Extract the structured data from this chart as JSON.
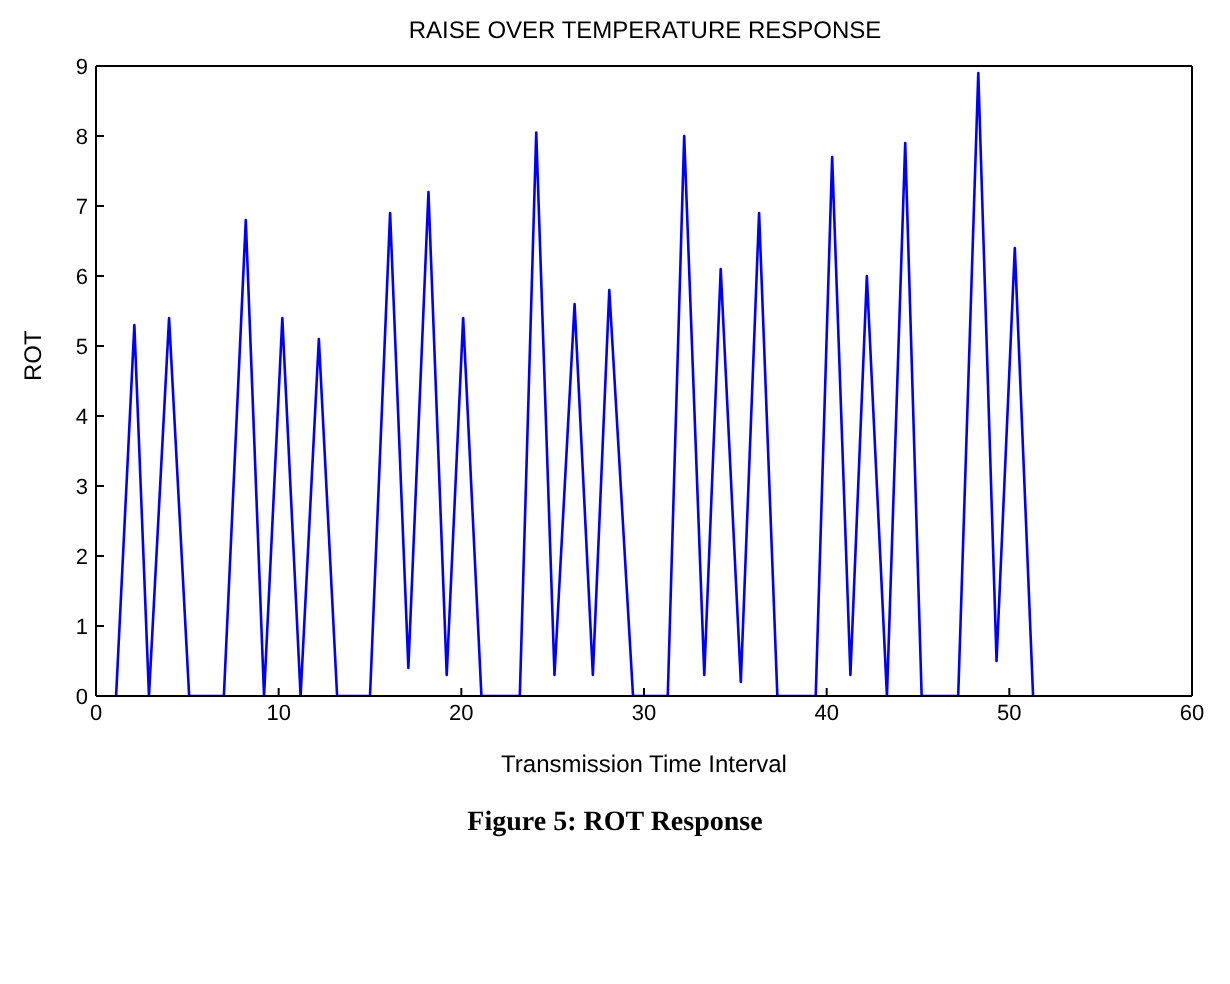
{
  "chart_data": {
    "type": "line",
    "title": "RAISE OVER TEMPERATURE RESPONSE",
    "xlabel": "Transmission Time Interval",
    "ylabel": "ROT",
    "series": [
      {
        "color": "#0000ff",
        "x": [
          1.1,
          2.1,
          2.9,
          4.0,
          5.1,
          7.0,
          8.2,
          9.2,
          10.2,
          11.2,
          12.2,
          13.2,
          15.0,
          16.1,
          17.1,
          18.2,
          19.2,
          20.1,
          21.1,
          23.2,
          24.1,
          25.1,
          26.2,
          27.2,
          28.1,
          29.4,
          31.3,
          32.2,
          33.3,
          34.2,
          35.3,
          36.3,
          37.3,
          39.4,
          40.3,
          41.3,
          42.2,
          43.3,
          44.3,
          45.2,
          47.2,
          48.3,
          49.3,
          50.3,
          51.3
        ],
        "values": [
          0,
          5.3,
          0,
          5.4,
          0,
          0,
          6.8,
          0,
          5.4,
          0,
          5.1,
          0,
          0,
          6.9,
          0.4,
          7.2,
          0.3,
          5.4,
          0,
          0,
          8.05,
          0.3,
          5.6,
          0.3,
          5.8,
          0,
          0,
          8.0,
          0.3,
          6.1,
          0.2,
          6.9,
          0,
          0,
          7.7,
          0.3,
          6.0,
          0,
          7.9,
          0,
          0,
          8.9,
          0.5,
          6.4,
          0
        ]
      }
    ],
    "xlim": [
      0,
      60
    ],
    "xticks": [
      0,
      10,
      20,
      30,
      40,
      50,
      60
    ],
    "ylim": [
      0,
      9
    ],
    "yticks": [
      0,
      1,
      2,
      3,
      4,
      5,
      6,
      7,
      8,
      9
    ],
    "grid": false,
    "legend": false,
    "marker": "none",
    "line_style": "solid",
    "annotations": [
      "Figure 5: ROT Response"
    ]
  }
}
